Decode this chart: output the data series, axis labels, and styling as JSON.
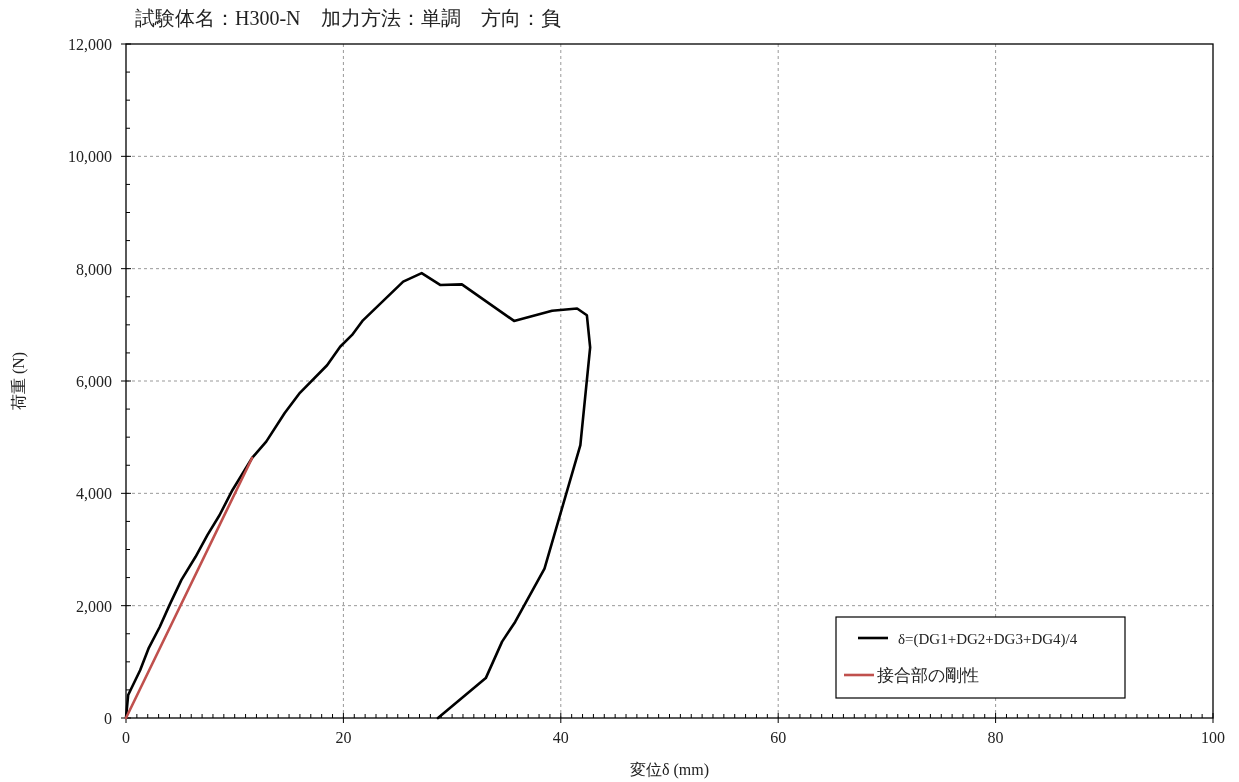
{
  "chart_data": {
    "type": "line",
    "title": "試験体名：H300-N　加力方法：単調　方向：負",
    "xlabel": "変位δ (mm)",
    "ylabel": "荷重 (N)",
    "series": [
      {
        "name": "δ=(DG1+DG2+DG3+DG4)/4",
        "color": "#000000",
        "x": [
          0,
          0.2,
          0.5,
          1.3,
          2.1,
          3.1,
          4.0,
          5.1,
          6.4,
          7.5,
          8.6,
          9.8,
          11.6,
          12.9,
          14.6,
          16.0,
          18.5,
          19.7,
          20.8,
          21.8,
          25.5,
          27.2,
          28.9,
          30.9,
          35.7,
          39.2,
          41.5,
          42.4,
          42.7,
          41.8,
          38.5,
          35.8,
          34.6,
          33.1,
          28.7
        ],
        "values": [
          0,
          410,
          530,
          850,
          1250,
          1620,
          2010,
          2460,
          2870,
          3260,
          3610,
          4060,
          4630,
          4920,
          5430,
          5790,
          6280,
          6610,
          6820,
          7080,
          7770,
          7920,
          7710,
          7720,
          7070,
          7250,
          7290,
          7170,
          6600,
          4860,
          2660,
          1710,
          1360,
          710,
          0
        ]
      },
      {
        "name": "接合部の剛性",
        "color": "#c0504d",
        "x": [
          0,
          11.6
        ],
        "values": [
          0,
          4630
        ]
      }
    ],
    "xlim": [
      0,
      100
    ],
    "ylim": [
      0,
      12000
    ],
    "xticks": [
      0,
      {
        "value": 1,
        "label": null
      },
      {
        "value": 2,
        "label": null
      },
      {
        "value": 3,
        "label": null
      },
      {
        "value": 4,
        "label": null
      },
      {
        "value": 5,
        "label": null
      },
      {
        "value": 6,
        "label": null
      },
      {
        "value": 7,
        "label": null
      },
      {
        "value": 8,
        "label": null
      },
      {
        "value": 9,
        "label": null
      },
      {
        "value": 10,
        "label": null
      },
      {
        "value": 11,
        "label": null
      },
      {
        "value": 12,
        "label": null
      },
      {
        "value": 13,
        "label": null
      },
      {
        "value": 14,
        "label": null
      },
      {
        "value": 15,
        "label": null
      },
      {
        "value": 16,
        "label": null
      },
      {
        "value": 17,
        "label": null
      },
      {
        "value": 18,
        "label": null
      },
      {
        "value": 19,
        "label": null
      },
      20,
      {
        "value": 21,
        "label": null
      },
      {
        "value": 22,
        "label": null
      },
      {
        "value": 23,
        "label": null
      },
      {
        "value": 24,
        "label": null
      },
      {
        "value": 25,
        "label": null
      },
      {
        "value": 26,
        "label": null
      },
      {
        "value": 27,
        "label": null
      },
      {
        "value": 28,
        "label": null
      },
      {
        "value": 29,
        "label": null
      },
      {
        "value": 30,
        "label": null
      },
      {
        "value": 31,
        "label": null
      },
      {
        "value": 32,
        "label": null
      },
      {
        "value": 33,
        "label": null
      },
      {
        "value": 34,
        "label": null
      },
      {
        "value": 35,
        "label": null
      },
      {
        "value": 36,
        "label": null
      },
      {
        "value": 37,
        "label": null
      },
      {
        "value": 38,
        "label": null
      },
      {
        "value": 39,
        "label": null
      },
      40,
      {
        "value": 41,
        "label": null
      },
      {
        "value": 42,
        "label": null
      },
      {
        "value": 43,
        "label": null
      },
      {
        "value": 44,
        "label": null
      },
      {
        "value": 45,
        "label": null
      },
      {
        "value": 46,
        "label": null
      },
      {
        "value": 47,
        "label": null
      },
      {
        "value": 48,
        "label": null
      },
      {
        "value": 49,
        "label": null
      },
      {
        "value": 50,
        "label": null
      },
      {
        "value": 51,
        "label": null
      },
      {
        "value": 52,
        "label": null
      },
      {
        "value": 53,
        "label": null
      },
      {
        "value": 54,
        "label": null
      },
      {
        "value": 55,
        "label": null
      },
      {
        "value": 56,
        "label": null
      },
      {
        "value": 57,
        "label": null
      },
      {
        "value": 58,
        "label": null
      },
      {
        "value": 59,
        "label": null
      },
      60,
      {
        "value": 61,
        "label": null
      },
      {
        "value": 62,
        "label": null
      },
      {
        "value": 63,
        "label": null
      },
      {
        "value": 64,
        "label": null
      },
      {
        "value": 65,
        "label": null
      },
      {
        "value": 66,
        "label": null
      },
      {
        "value": 67,
        "label": null
      },
      {
        "value": 68,
        "label": null
      },
      {
        "value": 69,
        "label": null
      },
      {
        "value": 70,
        "label": null
      },
      {
        "value": 71,
        "label": null
      },
      {
        "value": 72,
        "label": null
      },
      {
        "value": 73,
        "label": null
      },
      {
        "value": 74,
        "label": null
      },
      {
        "value": 75,
        "label": null
      },
      {
        "value": 76,
        "label": null
      },
      {
        "value": 77,
        "label": null
      },
      {
        "value": 78,
        "label": null
      },
      {
        "value": 79,
        "label": null
      },
      80,
      {
        "value": 81,
        "label": null
      },
      {
        "value": 82,
        "label": null
      },
      {
        "value": 83,
        "label": null
      },
      {
        "value": 84,
        "label": null
      },
      {
        "value": 85,
        "label": null
      },
      {
        "value": 86,
        "label": null
      },
      {
        "value": 87,
        "label": null
      },
      {
        "value": 88,
        "label": null
      },
      {
        "value": 89,
        "label": null
      },
      {
        "value": 90,
        "label": null
      },
      {
        "value": 91,
        "label": null
      },
      {
        "value": 92,
        "label": null
      },
      {
        "value": 93,
        "label": null
      },
      {
        "value": 94,
        "label": null
      },
      {
        "value": 95,
        "label": null
      },
      {
        "value": 96,
        "label": null
      },
      {
        "value": 97,
        "label": null
      },
      {
        "value": 98,
        "label": null
      },
      {
        "value": 99,
        "label": null
      },
      100
    ],
    "yticks": [
      0,
      {
        "value": 500,
        "label": null
      },
      {
        "value": 1000,
        "label": null
      },
      {
        "value": 1500,
        "label": null
      },
      {
        "value": 2000,
        "label": "2,000"
      },
      {
        "value": 2500,
        "label": null
      },
      {
        "value": 3000,
        "label": null
      },
      {
        "value": 3500,
        "label": null
      },
      {
        "value": 4000,
        "label": "4,000"
      },
      {
        "value": 4500,
        "label": null
      },
      {
        "value": 5000,
        "label": null
      },
      {
        "value": 5500,
        "label": null
      },
      {
        "value": 6000,
        "label": "6,000"
      },
      {
        "value": 6500,
        "label": null
      },
      {
        "value": 7000,
        "label": null
      },
      {
        "value": 7500,
        "label": null
      },
      {
        "value": 8000,
        "label": "8,000"
      },
      {
        "value": 8500,
        "label": null
      },
      {
        "value": 9000,
        "label": null
      },
      {
        "value": 9500,
        "label": null
      },
      {
        "value": 10000,
        "label": "10,000"
      },
      {
        "value": 10500,
        "label": null
      },
      {
        "value": 11000,
        "label": null
      },
      {
        "value": 11500,
        "label": null
      },
      {
        "value": 12000,
        "label": "12,000"
      }
    ],
    "grid": true,
    "legend": "bottom right",
    "marker": "none",
    "line_style": "solid"
  }
}
